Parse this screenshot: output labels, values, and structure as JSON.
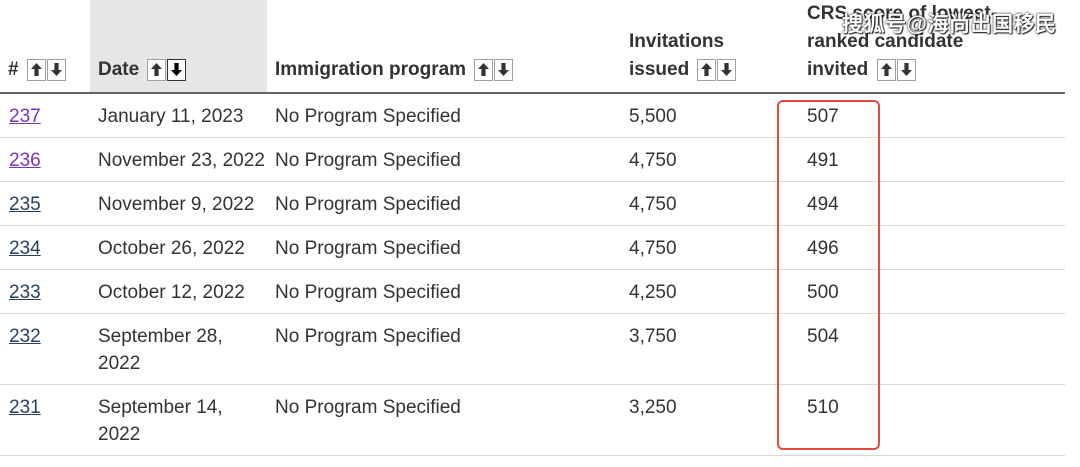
{
  "headers": {
    "number": "#",
    "date": "Date",
    "program": "Immigration program",
    "invitations_line1": "Invitations",
    "invitations_line2": "issued",
    "crs_line1": "CRS score of lowest-",
    "crs_line2": "ranked candidate",
    "crs_line3": "invited"
  },
  "sort_icons": {
    "up": "arrow-up-icon",
    "down": "arrow-down-icon"
  },
  "rows": [
    {
      "number": "237",
      "date": "January 11, 2023",
      "program": "No Program Specified",
      "invitations": "5,500",
      "crs": "507"
    },
    {
      "number": "236",
      "date": "November 23, 2022",
      "program": "No Program Specified",
      "invitations": "4,750",
      "crs": "491"
    },
    {
      "number": "235",
      "date": "November 9, 2022",
      "program": "No Program Specified",
      "invitations": "4,750",
      "crs": "494"
    },
    {
      "number": "234",
      "date": "October 26, 2022",
      "program": "No Program Specified",
      "invitations": "4,750",
      "crs": "496"
    },
    {
      "number": "233",
      "date": "October 12, 2022",
      "program": "No Program Specified",
      "invitations": "4,250",
      "crs": "500"
    },
    {
      "number": "232",
      "date": "September 28, 2022",
      "program": "No Program Specified",
      "invitations": "3,750",
      "crs": "504"
    },
    {
      "number": "231",
      "date": "September 14, 2022",
      "program": "No Program Specified",
      "invitations": "3,250",
      "crs": "510"
    }
  ],
  "watermark": "搜狐号@海尚出国移民",
  "colors": {
    "link": "#284162",
    "visited_link": "#7834bc",
    "highlight_box": "#e14b3b",
    "sorted_header_bg": "#e6e6e6"
  }
}
